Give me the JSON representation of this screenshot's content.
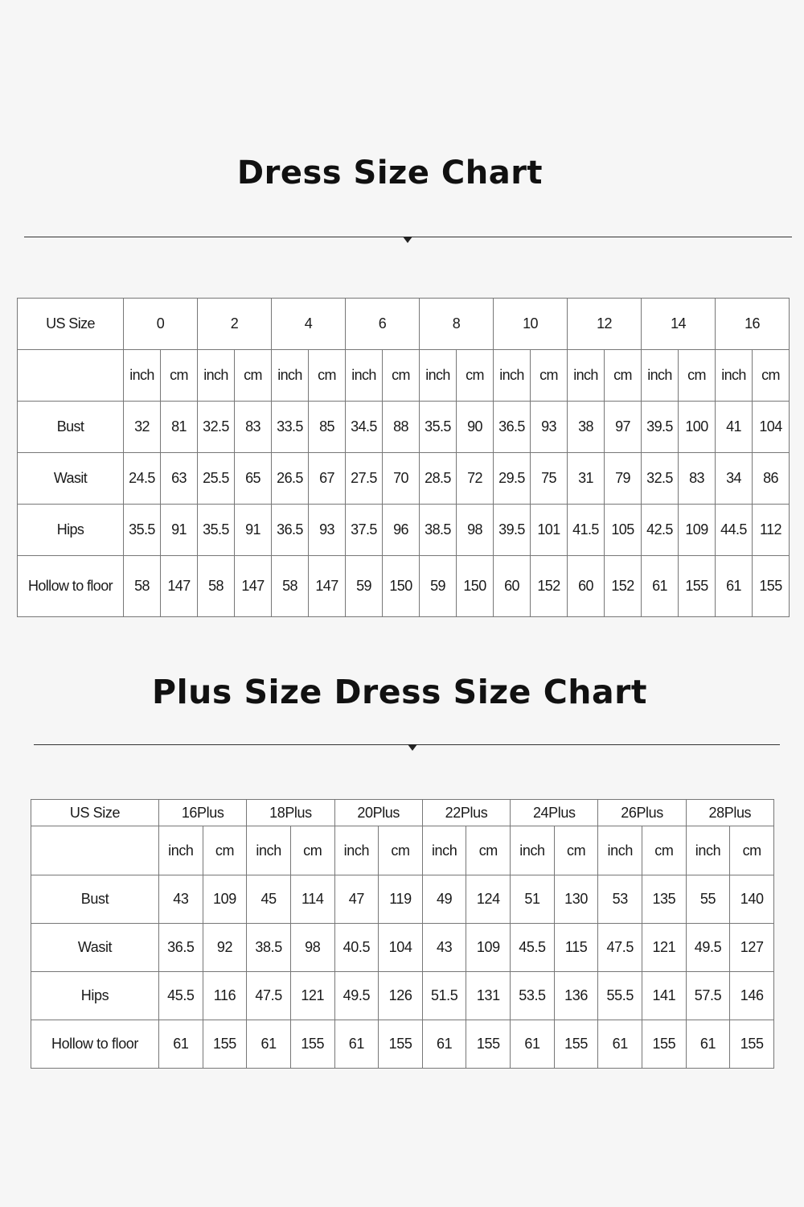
{
  "dress_chart": {
    "title": "Dress Size Chart",
    "size_label": "US Size",
    "sizes": [
      "0",
      "2",
      "4",
      "6",
      "8",
      "10",
      "12",
      "14",
      "16"
    ],
    "units": [
      "inch",
      "cm"
    ],
    "rows": [
      {
        "label": "Bust",
        "values": [
          "32",
          "81",
          "32.5",
          "83",
          "33.5",
          "85",
          "34.5",
          "88",
          "35.5",
          "90",
          "36.5",
          "93",
          "38",
          "97",
          "39.5",
          "100",
          "41",
          "104"
        ]
      },
      {
        "label": "Wasit",
        "values": [
          "24.5",
          "63",
          "25.5",
          "65",
          "26.5",
          "67",
          "27.5",
          "70",
          "28.5",
          "72",
          "29.5",
          "75",
          "31",
          "79",
          "32.5",
          "83",
          "34",
          "86"
        ]
      },
      {
        "label": "Hips",
        "values": [
          "35.5",
          "91",
          "35.5",
          "91",
          "36.5",
          "93",
          "37.5",
          "96",
          "38.5",
          "98",
          "39.5",
          "101",
          "41.5",
          "105",
          "42.5",
          "109",
          "44.5",
          "112"
        ]
      },
      {
        "label": "Hollow to floor",
        "values": [
          "58",
          "147",
          "58",
          "147",
          "58",
          "147",
          "59",
          "150",
          "59",
          "150",
          "60",
          "152",
          "60",
          "152",
          "61",
          "155",
          "61",
          "155"
        ]
      }
    ]
  },
  "plus_chart": {
    "title": "Plus Size Dress Size Chart",
    "size_label": "US Size",
    "sizes": [
      "16Plus",
      "18Plus",
      "20Plus",
      "22Plus",
      "24Plus",
      "26Plus",
      "28Plus"
    ],
    "units": [
      "inch",
      "cm"
    ],
    "rows": [
      {
        "label": "Bust",
        "values": [
          "43",
          "109",
          "45",
          "114",
          "47",
          "119",
          "49",
          "124",
          "51",
          "130",
          "53",
          "135",
          "55",
          "140"
        ]
      },
      {
        "label": "Wasit",
        "values": [
          "36.5",
          "92",
          "38.5",
          "98",
          "40.5",
          "104",
          "43",
          "109",
          "45.5",
          "115",
          "47.5",
          "121",
          "49.5",
          "127"
        ]
      },
      {
        "label": "Hips",
        "values": [
          "45.5",
          "116",
          "47.5",
          "121",
          "49.5",
          "126",
          "51.5",
          "131",
          "53.5",
          "136",
          "55.5",
          "141",
          "57.5",
          "146"
        ]
      },
      {
        "label": "Hollow to floor",
        "values": [
          "61",
          "155",
          "61",
          "155",
          "61",
          "155",
          "61",
          "155",
          "61",
          "155",
          "61",
          "155",
          "61",
          "155"
        ]
      }
    ]
  }
}
